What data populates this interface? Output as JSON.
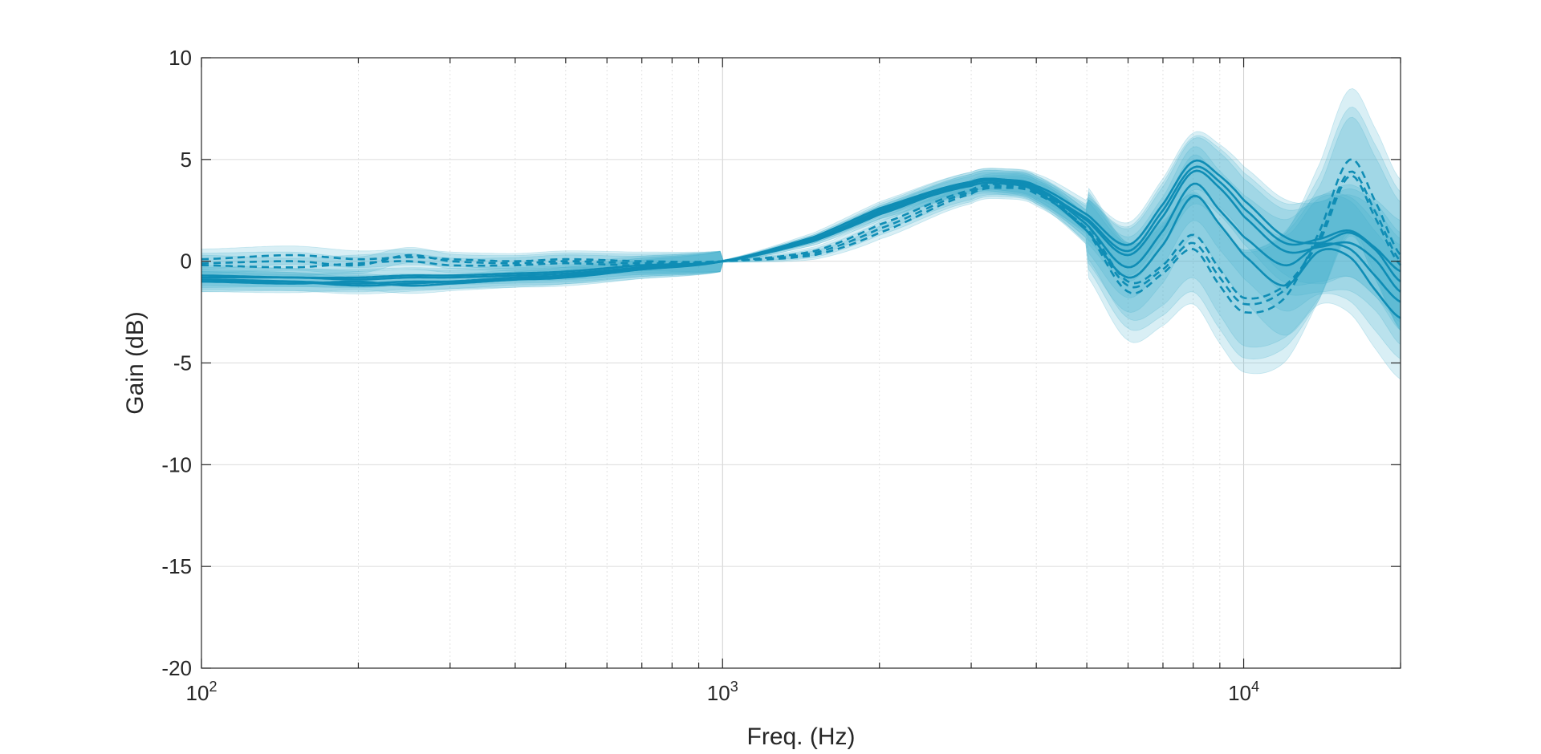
{
  "chart_data": {
    "type": "line",
    "title": "",
    "xlabel": "Freq. (Hz)",
    "ylabel": "Gain (dB)",
    "xscale": "log",
    "xlim": [
      100,
      20000
    ],
    "ylim": [
      -20,
      10
    ],
    "grid": true,
    "legend": "none",
    "x_ticks": [
      {
        "value": 100,
        "base": "10",
        "exp": "2"
      },
      {
        "value": 1000,
        "base": "10",
        "exp": "3"
      },
      {
        "value": 10000,
        "base": "10",
        "exp": "4"
      }
    ],
    "y_ticks": [
      {
        "value": 10,
        "label": "10"
      },
      {
        "value": 5,
        "label": "5"
      },
      {
        "value": 0,
        "label": "0"
      },
      {
        "value": -5,
        "label": "-5"
      },
      {
        "value": -10,
        "label": "-10"
      },
      {
        "value": -15,
        "label": "-15"
      },
      {
        "value": -20,
        "label": "-20"
      }
    ],
    "colors": {
      "line": "#0f8db5",
      "band": "#42b0cc",
      "grid": "#dcdcdc",
      "axes": "#262626"
    },
    "x": [
      100,
      150,
      200,
      250,
      300,
      400,
      500,
      700,
      1000,
      1500,
      2000,
      3000,
      3500,
      4000,
      5000,
      6000,
      7000,
      8000,
      9000,
      10000,
      12000,
      14000,
      16000,
      18000,
      20000
    ],
    "series": [
      {
        "style": "solid",
        "values": [
          -1.0,
          -1.0,
          -1.1,
          -1.0,
          -1.0,
          -0.9,
          -0.8,
          -0.4,
          0,
          1.1,
          2.5,
          3.9,
          4.0,
          3.7,
          2.3,
          0.8,
          2.8,
          4.9,
          4.2,
          3.0,
          1.2,
          0.9,
          1.4,
          0.5,
          -1.0
        ],
        "band": 0.9
      },
      {
        "style": "solid",
        "values": [
          -0.8,
          -0.8,
          -0.9,
          -0.8,
          -0.8,
          -0.7,
          -0.6,
          -0.3,
          0,
          1.0,
          2.4,
          3.8,
          3.9,
          3.6,
          2.0,
          0.3,
          2.2,
          4.4,
          3.6,
          2.2,
          0.5,
          0.7,
          0.9,
          0.0,
          -1.5
        ],
        "band": 1.1
      },
      {
        "style": "solid",
        "values": [
          -0.9,
          -1.0,
          -1.2,
          -1.1,
          -1.0,
          -0.8,
          -0.7,
          -0.4,
          0,
          1.2,
          2.6,
          3.9,
          4.0,
          3.6,
          1.8,
          -0.3,
          1.5,
          3.8,
          2.5,
          1.2,
          -0.2,
          0.8,
          0.6,
          -0.8,
          -2.0
        ],
        "band": 1.3
      },
      {
        "style": "solid",
        "values": [
          -1.0,
          -1.1,
          -1.0,
          -1.2,
          -1.1,
          -0.9,
          -0.7,
          -0.3,
          0,
          1.1,
          2.4,
          3.7,
          3.8,
          3.4,
          1.5,
          -0.8,
          0.8,
          3.2,
          1.8,
          0.3,
          -1.2,
          0.5,
          0.2,
          -1.5,
          -2.8
        ],
        "band": 1.5
      },
      {
        "style": "solid",
        "values": [
          -0.7,
          -0.8,
          -0.8,
          -0.7,
          -0.7,
          -0.6,
          -0.5,
          -0.2,
          0,
          1.0,
          2.3,
          3.8,
          3.9,
          3.5,
          2.1,
          0.5,
          2.5,
          4.6,
          3.9,
          2.6,
          0.9,
          1.1,
          1.5,
          0.6,
          -0.5
        ],
        "band": 1.0
      },
      {
        "style": "dashed",
        "values": [
          0.1,
          0.3,
          0.1,
          0.2,
          0.1,
          0.0,
          0.1,
          0.0,
          0,
          0.4,
          1.6,
          3.4,
          3.7,
          3.4,
          1.8,
          -1.0,
          -0.2,
          1.3,
          -0.4,
          -1.8,
          -1.2,
          1.0,
          4.2,
          2.0,
          -0.2
        ],
        "band": 1.6
      },
      {
        "style": "dashed",
        "values": [
          -0.1,
          0.0,
          -0.2,
          0.3,
          0.0,
          -0.1,
          0.0,
          -0.1,
          0,
          0.5,
          1.8,
          3.5,
          3.8,
          3.5,
          1.5,
          -1.5,
          -0.6,
          0.6,
          -1.2,
          -2.5,
          -1.8,
          1.5,
          5.0,
          2.8,
          0.3
        ],
        "band": 2.2
      },
      {
        "style": "dashed",
        "values": [
          -0.2,
          -0.3,
          -0.1,
          0.0,
          -0.2,
          -0.2,
          -0.1,
          -0.2,
          0,
          0.3,
          1.4,
          3.3,
          3.6,
          3.3,
          1.6,
          -1.2,
          -0.4,
          0.9,
          -0.8,
          -2.1,
          -1.4,
          1.2,
          4.4,
          2.3,
          0.0
        ],
        "band": 1.9
      }
    ]
  }
}
